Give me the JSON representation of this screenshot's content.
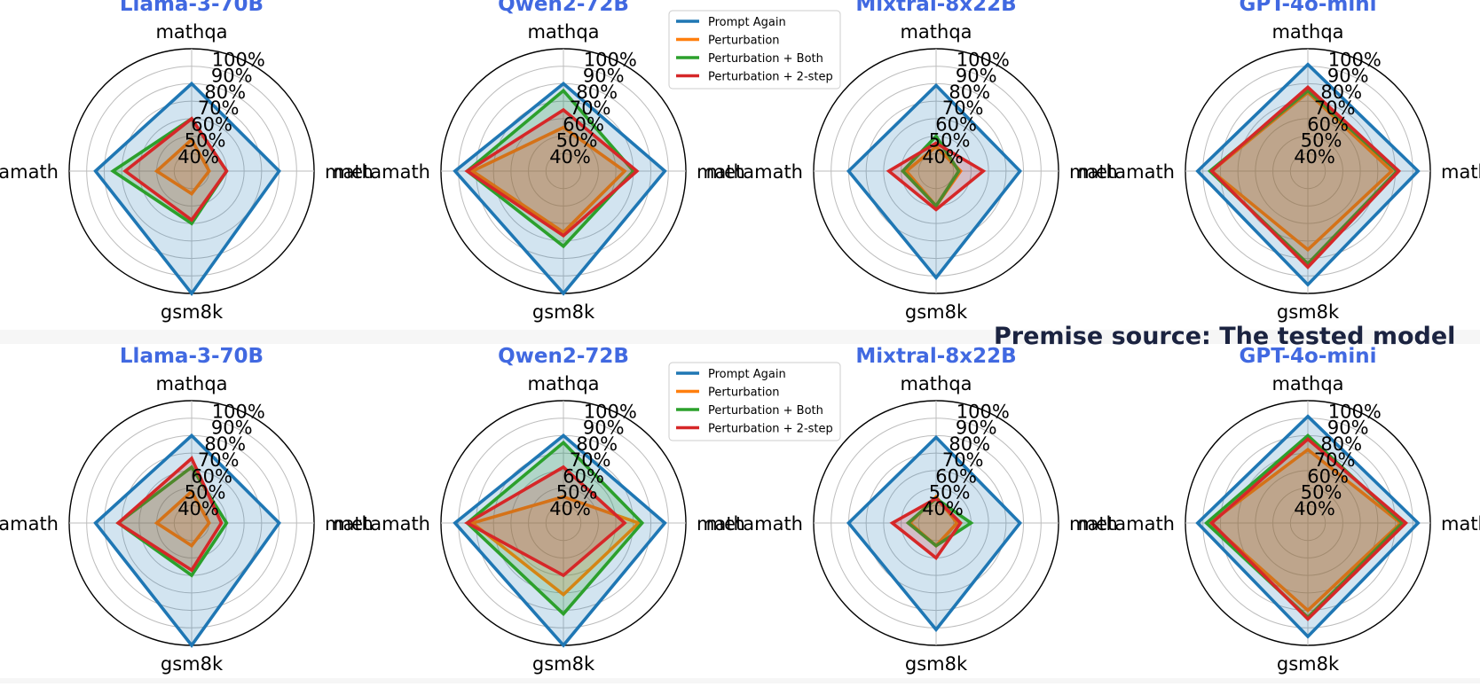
{
  "section_label": "Premise source: The tested model",
  "colors": {
    "title": "#4169e1",
    "Prompt Again": "#1f77b4",
    "Perturbation": "#ff7f0e",
    "Perturbation + Both": "#2ca02c",
    "Perturbation + 2-step": "#d62728"
  },
  "chart_data": [
    {
      "type": "radar",
      "title": "Llama-3-70B",
      "axes": [
        "mathqa",
        "math",
        "gsm8k",
        "metamath"
      ],
      "rlim": [
        30,
        100
      ],
      "rticks": [
        "40%",
        "50%",
        "60%",
        "70%",
        "80%",
        "90%",
        "100%"
      ],
      "legend": false,
      "series": [
        {
          "name": "Prompt Again",
          "values": [
            80,
            80,
            100,
            85
          ]
        },
        {
          "name": "Perturbation",
          "values": [
            48,
            40,
            43,
            50
          ]
        },
        {
          "name": "Perturbation + Both",
          "values": [
            60,
            50,
            60,
            75
          ]
        },
        {
          "name": "Perturbation + 2-step",
          "values": [
            60,
            50,
            58,
            68
          ]
        }
      ]
    },
    {
      "type": "radar",
      "title": "Qwen2-72B",
      "axes": [
        "mathqa",
        "math",
        "gsm8k",
        "metamath"
      ],
      "rlim": [
        30,
        100
      ],
      "rticks": [
        "40%",
        "50%",
        "60%",
        "70%",
        "80%",
        "90%",
        "100%"
      ],
      "legend": true,
      "series": [
        {
          "name": "Prompt Again",
          "values": [
            80,
            88,
            100,
            92
          ]
        },
        {
          "name": "Perturbation",
          "values": [
            55,
            65,
            65,
            82
          ]
        },
        {
          "name": "Perturbation + Both",
          "values": [
            76,
            70,
            73,
            85
          ]
        },
        {
          "name": "Perturbation + 2-step",
          "values": [
            65,
            72,
            67,
            85
          ]
        }
      ]
    },
    {
      "type": "radar",
      "title": "Mixtral-8x22B",
      "axes": [
        "mathqa",
        "math",
        "gsm8k",
        "metamath"
      ],
      "rlim": [
        30,
        100
      ],
      "rticks": [
        "40%",
        "50%",
        "60%",
        "70%",
        "80%",
        "90%",
        "100%"
      ],
      "legend": false,
      "series": [
        {
          "name": "Prompt Again",
          "values": [
            79,
            78,
            91,
            80
          ]
        },
        {
          "name": "Perturbation",
          "values": [
            44,
            44,
            50,
            47
          ]
        },
        {
          "name": "Perturbation + Both",
          "values": [
            50,
            43,
            50,
            49
          ]
        },
        {
          "name": "Perturbation + 2-step",
          "values": [
            46,
            57,
            52,
            57
          ]
        }
      ]
    },
    {
      "type": "radar",
      "title": "GPT-4o-mini",
      "axes": [
        "mathqa",
        "math",
        "gsm8k",
        "metamath"
      ],
      "rlim": [
        30,
        100
      ],
      "rticks": [
        "40%",
        "50%",
        "60%",
        "70%",
        "80%",
        "90%",
        "100%"
      ],
      "legend": false,
      "series": [
        {
          "name": "Prompt Again",
          "values": [
            91,
            93,
            95,
            93
          ]
        },
        {
          "name": "Perturbation",
          "values": [
            75,
            78,
            75,
            85
          ]
        },
        {
          "name": "Perturbation + Both",
          "values": [
            76,
            81,
            83,
            86
          ]
        },
        {
          "name": "Perturbation + 2-step",
          "values": [
            78,
            82,
            85,
            85
          ]
        }
      ]
    },
    {
      "type": "radar",
      "title": "Llama-3-70B",
      "axes": [
        "mathqa",
        "math",
        "gsm8k",
        "metamath"
      ],
      "rlim": [
        30,
        100
      ],
      "rticks": [
        "40%",
        "50%",
        "60%",
        "70%",
        "80%",
        "90%",
        "100%"
      ],
      "legend": false,
      "series": [
        {
          "name": "Prompt Again",
          "values": [
            80,
            80,
            100,
            85
          ]
        },
        {
          "name": "Perturbation",
          "values": [
            48,
            40,
            43,
            50
          ]
        },
        {
          "name": "Perturbation + Both",
          "values": [
            62,
            50,
            60,
            72
          ]
        },
        {
          "name": "Perturbation + 2-step",
          "values": [
            67,
            47,
            57,
            72
          ]
        }
      ]
    },
    {
      "type": "radar",
      "title": "Qwen2-72B",
      "axes": [
        "mathqa",
        "math",
        "gsm8k",
        "metamath"
      ],
      "rlim": [
        30,
        100
      ],
      "rticks": [
        "40%",
        "50%",
        "60%",
        "70%",
        "80%",
        "90%",
        "100%"
      ],
      "legend": true,
      "series": [
        {
          "name": "Prompt Again",
          "values": [
            80,
            88,
            100,
            92
          ]
        },
        {
          "name": "Perturbation",
          "values": [
            45,
            73,
            71,
            82
          ]
        },
        {
          "name": "Perturbation + Both",
          "values": [
            76,
            75,
            82,
            85
          ]
        },
        {
          "name": "Perturbation + 2-step",
          "values": [
            62,
            65,
            60,
            85
          ]
        }
      ]
    },
    {
      "type": "radar",
      "title": "Mixtral-8x22B",
      "axes": [
        "mathqa",
        "math",
        "gsm8k",
        "metamath"
      ],
      "rlim": [
        30,
        100
      ],
      "rticks": [
        "40%",
        "50%",
        "60%",
        "70%",
        "80%",
        "90%",
        "100%"
      ],
      "legend": false,
      "series": [
        {
          "name": "Prompt Again",
          "values": [
            79,
            78,
            91,
            80
          ]
        },
        {
          "name": "Perturbation",
          "values": [
            45,
            42,
            43,
            45
          ]
        },
        {
          "name": "Perturbation + Both",
          "values": [
            44,
            50,
            43,
            46
          ]
        },
        {
          "name": "Perturbation + 2-step",
          "values": [
            44,
            44,
            50,
            55
          ]
        }
      ]
    },
    {
      "type": "radar",
      "title": "GPT-4o-mini",
      "axes": [
        "mathqa",
        "math",
        "gsm8k",
        "metamath"
      ],
      "rlim": [
        30,
        100
      ],
      "rticks": [
        "40%",
        "50%",
        "60%",
        "70%",
        "80%",
        "90%",
        "100%"
      ],
      "legend": false,
      "series": [
        {
          "name": "Prompt Again",
          "values": [
            91,
            93,
            95,
            93
          ]
        },
        {
          "name": "Perturbation",
          "values": [
            72,
            83,
            80,
            86
          ]
        },
        {
          "name": "Perturbation + Both",
          "values": [
            80,
            84,
            84,
            88
          ]
        },
        {
          "name": "Perturbation + 2-step",
          "values": [
            78,
            86,
            85,
            85
          ]
        }
      ]
    }
  ]
}
